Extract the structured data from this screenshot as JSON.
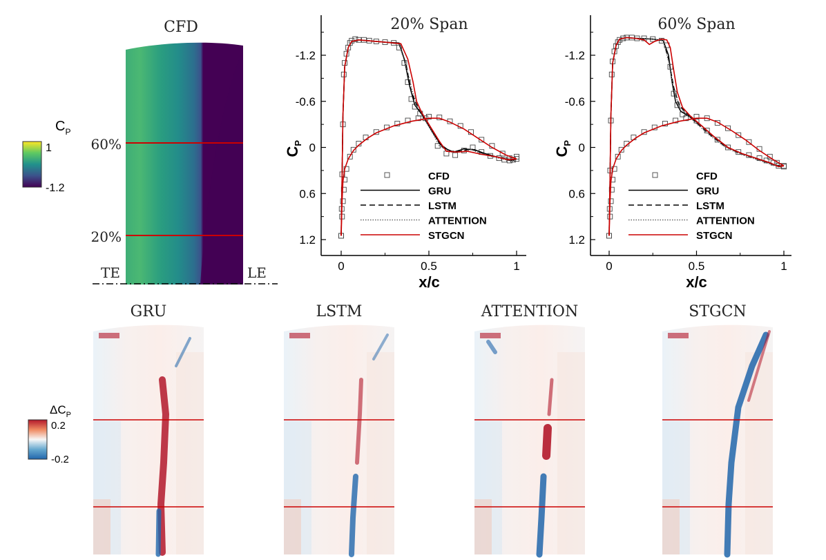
{
  "cfd_panel": {
    "title": "CFD",
    "colorbar": {
      "label_main": "C",
      "label_sub": "P",
      "max_label": "1",
      "min_label": "-1.2"
    },
    "span_lines": [
      "60%",
      "20%"
    ],
    "edge_left": "TE",
    "edge_right": "LE",
    "colors": {
      "high": "#fde725",
      "mid": "#21918c",
      "low": "#440154",
      "cut": "#cc0000"
    }
  },
  "line_charts": {
    "ylabel_main": "C",
    "ylabel_sub": "P",
    "xlabel": "x/c",
    "legend": [
      "CFD",
      "GRU",
      "LSTM",
      "ATTENTION",
      "STGCN"
    ]
  },
  "chart_data": [
    {
      "type": "line",
      "title": "20% Span",
      "xlabel": "x/c",
      "ylabel": "CP",
      "xlim": [
        -0.1,
        1.05
      ],
      "ylim": [
        1.3,
        -1.5
      ],
      "y_inverted": true,
      "xticks": [
        0,
        0.5,
        1
      ],
      "xtick_labels": [
        "0",
        "0.5",
        "1"
      ],
      "yticks": [
        -1.2,
        -0.6,
        0,
        0.6,
        1.2
      ],
      "ytick_labels": [
        "-1.2",
        "-0.6",
        "0",
        "0.6",
        "1.2"
      ],
      "series": [
        {
          "name": "CFD",
          "style": "markers",
          "x": [
            0.0,
            0.003,
            0.006,
            0.01,
            0.015,
            0.02,
            0.03,
            0.04,
            0.05,
            0.06,
            0.08,
            0.1,
            0.13,
            0.16,
            0.2,
            0.25,
            0.3,
            0.33,
            0.36,
            0.38,
            0.4,
            0.42,
            0.45,
            0.48,
            0.55,
            0.6,
            0.65,
            0.7,
            0.75,
            0.8,
            0.85,
            0.9,
            0.93,
            0.96,
            0.98,
            1.0,
            0.0,
            0.005,
            0.01,
            0.015,
            0.02,
            0.03,
            0.05,
            0.07,
            0.1,
            0.14,
            0.2,
            0.26,
            0.32,
            0.38,
            0.44,
            0.5,
            0.56,
            0.62,
            0.68,
            0.74,
            0.8,
            0.86,
            0.92,
            0.96,
            1.0
          ],
          "y": [
            1.15,
            0.8,
            0.35,
            -0.3,
            -0.95,
            -1.1,
            -1.22,
            -1.3,
            -1.36,
            -1.39,
            -1.41,
            -1.4,
            -1.4,
            -1.39,
            -1.38,
            -1.37,
            -1.36,
            -1.3,
            -1.1,
            -0.85,
            -0.63,
            -0.53,
            -0.44,
            -0.38,
            -0.02,
            0.08,
            0.1,
            0.04,
            0.0,
            0.06,
            0.11,
            0.14,
            0.16,
            0.17,
            0.16,
            0.12,
            1.15,
            0.9,
            0.7,
            0.55,
            0.42,
            0.28,
            0.12,
            0.03,
            -0.05,
            -0.13,
            -0.2,
            -0.26,
            -0.31,
            -0.35,
            -0.38,
            -0.4,
            -0.39,
            -0.34,
            -0.28,
            -0.2,
            -0.1,
            -0.02,
            0.08,
            0.14,
            0.15
          ]
        },
        {
          "name": "GRU",
          "style": "solid",
          "color": "#000000",
          "x": [
            0.0,
            0.005,
            0.01,
            0.02,
            0.04,
            0.06,
            0.1,
            0.15,
            0.25,
            0.33,
            0.36,
            0.39,
            0.42,
            0.46,
            0.52,
            0.58,
            0.64,
            0.7,
            0.76,
            0.82,
            0.88,
            0.94,
            0.98,
            1.0
          ],
          "y": [
            1.15,
            0.4,
            -0.4,
            -1.05,
            -1.3,
            -1.38,
            -1.4,
            -1.39,
            -1.37,
            -1.36,
            -1.15,
            -0.8,
            -0.55,
            -0.43,
            -0.2,
            0.0,
            0.06,
            0.02,
            0.03,
            0.08,
            0.12,
            0.15,
            0.17,
            0.15
          ]
        },
        {
          "name": "LSTM",
          "style": "dashed",
          "color": "#000000",
          "x": [
            0.0,
            0.005,
            0.01,
            0.02,
            0.04,
            0.06,
            0.1,
            0.15,
            0.25,
            0.33,
            0.37,
            0.4,
            0.44,
            0.5,
            0.56,
            0.62,
            0.68,
            0.74,
            0.8,
            0.86,
            0.92,
            0.97,
            1.0
          ],
          "y": [
            1.15,
            0.4,
            -0.4,
            -1.05,
            -1.3,
            -1.38,
            -1.4,
            -1.39,
            -1.37,
            -1.35,
            -1.08,
            -0.72,
            -0.5,
            -0.3,
            -0.05,
            0.05,
            0.05,
            0.02,
            0.07,
            0.11,
            0.14,
            0.17,
            0.15
          ]
        },
        {
          "name": "ATTENTION",
          "style": "dotted",
          "color": "#666666",
          "x": [
            0.0,
            0.005,
            0.01,
            0.02,
            0.04,
            0.06,
            0.1,
            0.15,
            0.25,
            0.33,
            0.37,
            0.41,
            0.45,
            0.5,
            0.56,
            0.62,
            0.68,
            0.74,
            0.8,
            0.86,
            0.92,
            0.97,
            1.0
          ],
          "y": [
            1.15,
            0.4,
            -0.4,
            -1.05,
            -1.3,
            -1.38,
            -1.4,
            -1.39,
            -1.37,
            -1.35,
            -1.05,
            -0.7,
            -0.48,
            -0.28,
            -0.02,
            0.06,
            0.06,
            0.03,
            0.08,
            0.12,
            0.15,
            0.18,
            0.15
          ]
        },
        {
          "name": "STGCN",
          "style": "solid",
          "color": "#cc0000",
          "x": [
            0.0,
            0.005,
            0.01,
            0.02,
            0.04,
            0.06,
            0.1,
            0.15,
            0.25,
            0.34,
            0.38,
            0.41,
            0.43,
            0.46,
            0.5,
            0.56,
            0.6,
            0.66,
            0.72,
            0.8,
            0.88,
            0.95,
            1.0
          ],
          "y": [
            1.15,
            0.4,
            -0.4,
            -1.05,
            -1.3,
            -1.38,
            -1.4,
            -1.39,
            -1.37,
            -1.35,
            -1.15,
            -0.85,
            -0.6,
            -0.45,
            -0.3,
            -0.08,
            0.05,
            0.06,
            0.05,
            0.09,
            0.12,
            0.16,
            0.15
          ]
        },
        {
          "name": "lower",
          "style": "solid",
          "color": "#cc0000",
          "x": [
            0.0,
            0.005,
            0.01,
            0.02,
            0.04,
            0.07,
            0.1,
            0.15,
            0.2,
            0.3,
            0.4,
            0.5,
            0.56,
            0.62,
            0.7,
            0.78,
            0.86,
            0.94,
            1.0
          ],
          "y": [
            1.15,
            0.7,
            0.45,
            0.28,
            0.15,
            0.04,
            -0.03,
            -0.12,
            -0.19,
            -0.28,
            -0.34,
            -0.38,
            -0.38,
            -0.33,
            -0.24,
            -0.12,
            0.0,
            0.1,
            0.15
          ]
        }
      ]
    },
    {
      "type": "line",
      "title": "60% Span",
      "xlabel": "x/c",
      "ylabel": "CP",
      "xlim": [
        -0.1,
        1.05
      ],
      "ylim": [
        1.3,
        -1.5
      ],
      "y_inverted": true,
      "xticks": [
        0,
        0.5,
        1
      ],
      "xtick_labels": [
        "0",
        "0.5",
        "1"
      ],
      "yticks": [
        -1.2,
        -0.6,
        0,
        0.6,
        1.2
      ],
      "ytick_labels": [
        "-1.2",
        "-0.6",
        "0",
        "0.6",
        "1.2"
      ],
      "series": [
        {
          "name": "CFD",
          "style": "markers",
          "x": [
            0.0,
            0.003,
            0.006,
            0.01,
            0.015,
            0.02,
            0.03,
            0.04,
            0.05,
            0.06,
            0.08,
            0.1,
            0.13,
            0.16,
            0.2,
            0.25,
            0.3,
            0.33,
            0.35,
            0.37,
            0.39,
            0.42,
            0.5,
            0.56,
            0.62,
            0.68,
            0.74,
            0.8,
            0.86,
            0.9,
            0.94,
            0.97,
            1.0,
            0.0,
            0.005,
            0.01,
            0.015,
            0.02,
            0.03,
            0.05,
            0.07,
            0.1,
            0.14,
            0.2,
            0.26,
            0.32,
            0.38,
            0.44,
            0.5,
            0.56,
            0.62,
            0.68,
            0.74,
            0.8,
            0.86,
            0.92,
            0.96,
            1.0
          ],
          "y": [
            1.15,
            0.8,
            0.3,
            -0.35,
            -0.95,
            -1.12,
            -1.25,
            -1.32,
            -1.37,
            -1.4,
            -1.42,
            -1.43,
            -1.43,
            -1.42,
            -1.42,
            -1.41,
            -1.39,
            -1.33,
            -1.05,
            -0.7,
            -0.55,
            -0.43,
            -0.35,
            -0.22,
            -0.1,
            0.0,
            0.06,
            0.1,
            0.14,
            0.17,
            0.2,
            0.24,
            0.25,
            1.15,
            0.9,
            0.7,
            0.55,
            0.42,
            0.28,
            0.12,
            0.03,
            -0.05,
            -0.13,
            -0.2,
            -0.26,
            -0.31,
            -0.35,
            -0.38,
            -0.4,
            -0.38,
            -0.32,
            -0.25,
            -0.16,
            -0.07,
            0.02,
            0.12,
            0.2,
            0.24
          ]
        },
        {
          "name": "GRU",
          "style": "solid",
          "color": "#000000",
          "x": [
            0.0,
            0.005,
            0.01,
            0.02,
            0.04,
            0.06,
            0.1,
            0.15,
            0.25,
            0.31,
            0.34,
            0.36,
            0.38,
            0.41,
            0.46,
            0.52,
            0.6,
            0.68,
            0.76,
            0.84,
            0.92,
            0.97,
            1.0
          ],
          "y": [
            1.15,
            0.4,
            -0.4,
            -1.1,
            -1.33,
            -1.41,
            -1.43,
            -1.42,
            -1.41,
            -1.39,
            -1.2,
            -0.85,
            -0.6,
            -0.47,
            -0.4,
            -0.3,
            -0.14,
            0.0,
            0.08,
            0.14,
            0.2,
            0.25,
            0.24
          ]
        },
        {
          "name": "LSTM",
          "style": "dashed",
          "color": "#000000",
          "x": [
            0.0,
            0.005,
            0.01,
            0.02,
            0.04,
            0.06,
            0.1,
            0.15,
            0.25,
            0.31,
            0.34,
            0.37,
            0.4,
            0.44,
            0.5,
            0.58,
            0.66,
            0.74,
            0.82,
            0.9,
            0.96,
            1.0
          ],
          "y": [
            1.15,
            0.4,
            -0.4,
            -1.1,
            -1.33,
            -1.41,
            -1.43,
            -1.42,
            -1.41,
            -1.39,
            -1.15,
            -0.78,
            -0.55,
            -0.45,
            -0.32,
            -0.16,
            -0.02,
            0.07,
            0.13,
            0.19,
            0.24,
            0.24
          ]
        },
        {
          "name": "ATTENTION",
          "style": "dotted",
          "color": "#666666",
          "x": [
            0.0,
            0.005,
            0.01,
            0.02,
            0.04,
            0.06,
            0.1,
            0.15,
            0.25,
            0.31,
            0.34,
            0.37,
            0.4,
            0.44,
            0.5,
            0.58,
            0.66,
            0.74,
            0.82,
            0.9,
            0.96,
            1.0
          ],
          "y": [
            1.15,
            0.4,
            -0.4,
            -1.1,
            -1.33,
            -1.41,
            -1.43,
            -1.42,
            -1.41,
            -1.39,
            -1.12,
            -0.76,
            -0.53,
            -0.44,
            -0.31,
            -0.15,
            -0.01,
            0.08,
            0.14,
            0.2,
            0.25,
            0.24
          ]
        },
        {
          "name": "STGCN",
          "style": "solid",
          "color": "#cc0000",
          "x": [
            0.0,
            0.005,
            0.01,
            0.02,
            0.04,
            0.06,
            0.1,
            0.15,
            0.2,
            0.23,
            0.26,
            0.3,
            0.33,
            0.35,
            0.37,
            0.39,
            0.42,
            0.46,
            0.52,
            0.6,
            0.68,
            0.76,
            0.84,
            0.92,
            0.97,
            1.0
          ],
          "y": [
            1.15,
            0.4,
            -0.4,
            -1.1,
            -1.33,
            -1.41,
            -1.43,
            -1.42,
            -1.4,
            -1.34,
            -1.38,
            -1.41,
            -1.4,
            -1.3,
            -1.0,
            -0.72,
            -0.52,
            -0.42,
            -0.3,
            -0.14,
            0.0,
            0.08,
            0.14,
            0.2,
            0.25,
            0.24
          ]
        },
        {
          "name": "lower",
          "style": "solid",
          "color": "#cc0000",
          "x": [
            0.0,
            0.005,
            0.01,
            0.02,
            0.04,
            0.07,
            0.1,
            0.15,
            0.2,
            0.3,
            0.4,
            0.5,
            0.56,
            0.62,
            0.7,
            0.78,
            0.86,
            0.94,
            1.0
          ],
          "y": [
            1.15,
            0.7,
            0.45,
            0.28,
            0.15,
            0.04,
            -0.03,
            -0.12,
            -0.19,
            -0.28,
            -0.34,
            -0.38,
            -0.38,
            -0.33,
            -0.22,
            -0.1,
            0.04,
            0.16,
            0.24
          ]
        }
      ]
    }
  ],
  "diff_panels": {
    "colorbar": {
      "label_main": "ΔC",
      "label_sub": "P",
      "max_label": "0.2",
      "min_label": "-0.2"
    },
    "titles": [
      "GRU",
      "LSTM",
      "ATTENTION",
      "STGCN"
    ],
    "colors": {
      "pos": "#b2182b",
      "neg": "#2166ac",
      "zero": "#f7f7f7",
      "cut": "#cc0000"
    }
  }
}
